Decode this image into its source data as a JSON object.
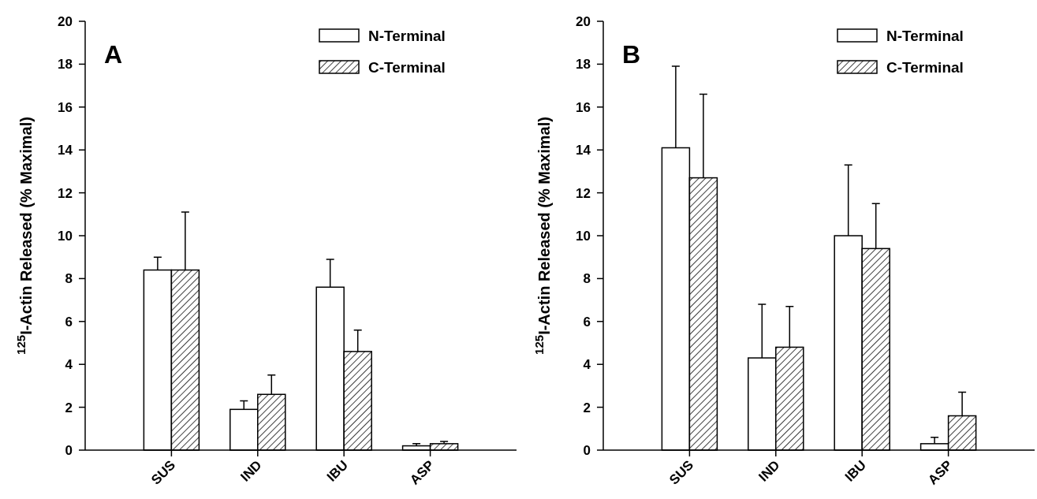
{
  "chart_data": [
    {
      "type": "bar",
      "title": "A",
      "ylabel": "$^{125}$I-Actin Released (% Maximal)",
      "categories": [
        "SUS",
        "IND",
        "IBU",
        "ASP"
      ],
      "ylim": [
        0,
        20
      ],
      "yticks": [
        0,
        2,
        4,
        6,
        8,
        10,
        12,
        14,
        16,
        18,
        20
      ],
      "legend": "top right",
      "series": [
        {
          "name": "N-Terminal",
          "color": "#ffffff",
          "values": [
            8.4,
            1.9,
            7.6,
            0.2
          ],
          "errors": [
            [
              8.4,
              9.0
            ],
            [
              1.9,
              2.3
            ],
            [
              7.6,
              8.9
            ],
            [
              0.2,
              0.3
            ]
          ]
        },
        {
          "name": "C-Terminal",
          "color": "#000000",
          "values": [
            8.4,
            2.6,
            4.6,
            0.3
          ],
          "errors": [
            [
              8.4,
              11.1
            ],
            [
              2.6,
              3.5
            ],
            [
              4.6,
              5.6
            ],
            [
              0.3,
              0.4
            ]
          ]
        }
      ]
    },
    {
      "type": "bar",
      "title": "B",
      "ylabel": "$^{125}$I-Actin Released (% Maximal)",
      "categories": [
        "SUS",
        "IND",
        "IBU",
        "ASP"
      ],
      "ylim": [
        0,
        20
      ],
      "yticks": [
        0,
        2,
        4,
        6,
        8,
        10,
        12,
        14,
        16,
        18,
        20
      ],
      "legend": "top right",
      "series": [
        {
          "name": "N-Terminal",
          "color": "#ffffff",
          "values": [
            14.1,
            4.3,
            10.0,
            0.3
          ],
          "errors": [
            [
              14.1,
              17.9
            ],
            [
              4.3,
              6.8
            ],
            [
              10.0,
              13.3
            ],
            [
              0.3,
              0.6
            ]
          ]
        },
        {
          "name": "C-Terminal",
          "color": "#000000",
          "values": [
            12.7,
            4.8,
            9.4,
            1.6
          ],
          "errors": [
            [
              12.7,
              16.6
            ],
            [
              4.8,
              6.7
            ],
            [
              9.4,
              11.5
            ],
            [
              1.6,
              2.7
            ]
          ]
        }
      ]
    }
  ]
}
